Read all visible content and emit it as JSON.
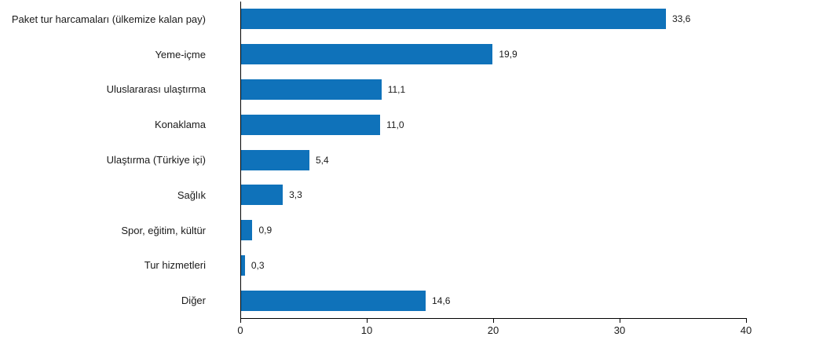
{
  "chart_data": {
    "type": "bar",
    "orientation": "horizontal",
    "title": "",
    "xlabel": "",
    "ylabel": "",
    "categories": [
      "Paket tur harcamaları (ülkemize kalan pay)",
      "Yeme-içme",
      "Uluslararası ulaştırma",
      "Konaklama",
      "Ulaştırma (Türkiye içi)",
      "Sağlık",
      "Spor, eğitim, kültür",
      "Tur hizmetleri",
      "Diğer"
    ],
    "values": [
      33.6,
      19.9,
      11.1,
      11.0,
      5.4,
      3.3,
      0.9,
      0.3,
      14.6
    ],
    "value_labels": [
      "33,6",
      "19,9",
      "11,1",
      "11,0",
      "5,4",
      "3,3",
      "0,9",
      "0,3",
      "14,6"
    ],
    "xlim": [
      0,
      40
    ],
    "xticks": [
      0,
      10,
      20,
      30,
      40
    ],
    "xtick_labels": [
      "0",
      "10",
      "20",
      "30",
      "40"
    ],
    "grid": false,
    "legend": false,
    "bar_color": "#0F72BA",
    "axis_color": "#000000",
    "text_color": "#1a1a1a"
  }
}
